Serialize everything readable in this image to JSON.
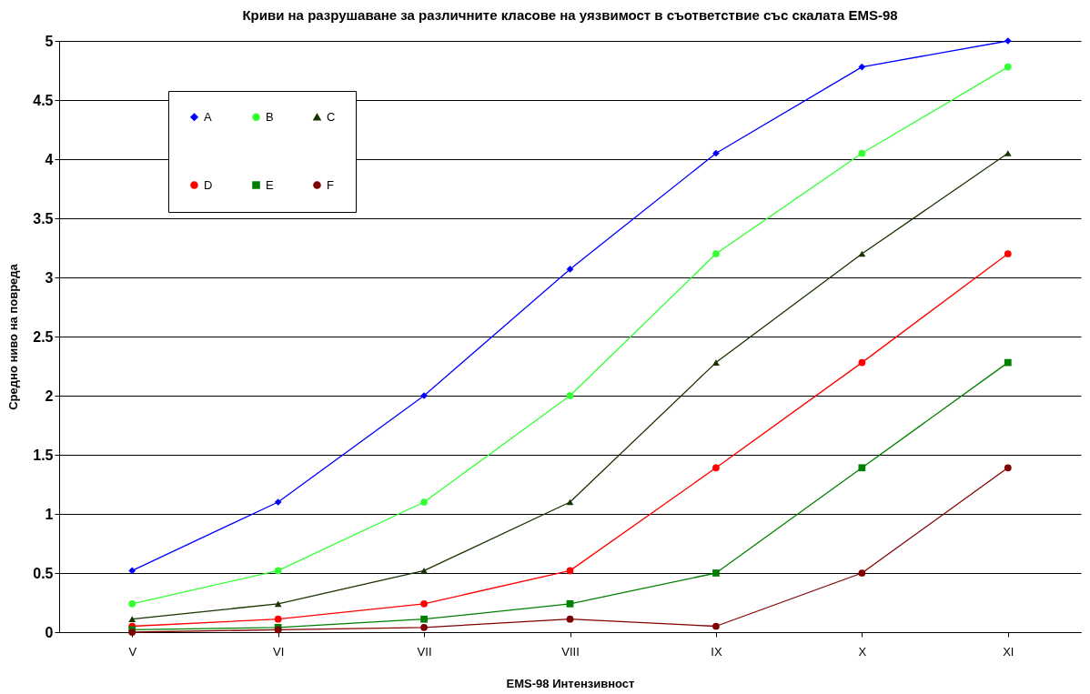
{
  "chart_data": {
    "type": "line",
    "title": "Криви на разрушаване за различните класове на уязвимост в съответствие със скалата EMS-98",
    "xlabel": "EMS-98 Интензивност",
    "ylabel": "Средно ниво на повреда",
    "categories": [
      "V",
      "VI",
      "VII",
      "VIII",
      "IX",
      "X",
      "XI"
    ],
    "series": [
      {
        "name": "A",
        "color": "#0000ff",
        "marker": "diamond",
        "values": [
          0.52,
          1.1,
          2.0,
          3.07,
          4.05,
          4.78,
          5.0
        ]
      },
      {
        "name": "B",
        "color": "#33ff33",
        "marker": "circle",
        "values": [
          0.24,
          0.52,
          1.1,
          2.0,
          3.2,
          4.05,
          4.78
        ]
      },
      {
        "name": "C",
        "color": "#1a3300",
        "marker": "triangle",
        "values": [
          0.11,
          0.24,
          0.52,
          1.1,
          2.28,
          3.2,
          4.05
        ]
      },
      {
        "name": "D",
        "color": "#ff0000",
        "marker": "circle",
        "values": [
          0.05,
          0.11,
          0.24,
          0.52,
          1.39,
          2.28,
          3.2
        ]
      },
      {
        "name": "E",
        "color": "#008000",
        "marker": "square",
        "values": [
          0.02,
          0.04,
          0.11,
          0.24,
          0.5,
          1.39,
          2.28
        ]
      },
      {
        "name": "F",
        "color": "#800000",
        "marker": "circle",
        "values": [
          0.0,
          0.02,
          0.04,
          0.11,
          0.05,
          0.5,
          1.39
        ]
      }
    ],
    "ylim": [
      0,
      5
    ],
    "yticks": [
      0,
      0.5,
      1,
      1.5,
      2,
      2.5,
      3,
      3.5,
      4,
      4.5,
      5
    ],
    "grid": "y",
    "legend": "top left"
  }
}
